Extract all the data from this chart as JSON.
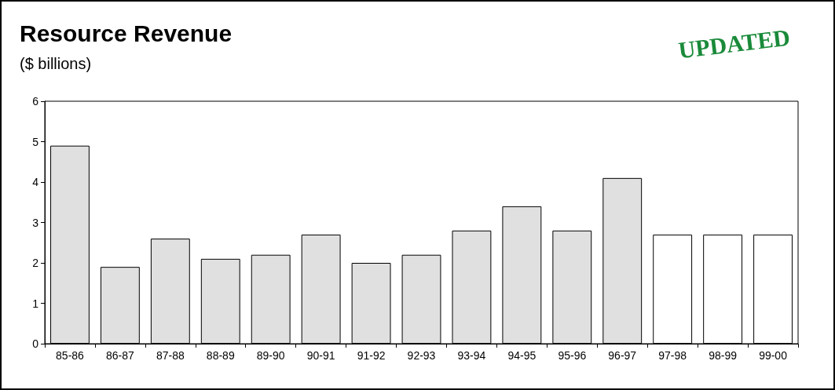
{
  "chart_data": {
    "type": "bar",
    "title": "Resource Revenue",
    "subtitle": "($ billions)",
    "annotations": [
      "UPDATED"
    ],
    "categories": [
      "85-86",
      "86-87",
      "87-88",
      "88-89",
      "89-90",
      "90-91",
      "91-92",
      "92-93",
      "93-94",
      "94-95",
      "95-96",
      "96-97",
      "97-98",
      "98-99",
      "99-00"
    ],
    "values": [
      4.9,
      1.9,
      2.6,
      2.1,
      2.2,
      2.7,
      2.0,
      2.2,
      2.8,
      3.4,
      2.8,
      4.1,
      2.7,
      2.7,
      2.7
    ],
    "colors": [
      "#e0e0e0",
      "#e0e0e0",
      "#e0e0e0",
      "#e0e0e0",
      "#e0e0e0",
      "#e0e0e0",
      "#e0e0e0",
      "#e0e0e0",
      "#e0e0e0",
      "#e0e0e0",
      "#e0e0e0",
      "#e0e0e0",
      "#ffffff",
      "#ffffff",
      "#ffffff"
    ],
    "ylim": [
      0,
      6
    ],
    "yticks": [
      0,
      1,
      2,
      3,
      4,
      5,
      6
    ]
  }
}
